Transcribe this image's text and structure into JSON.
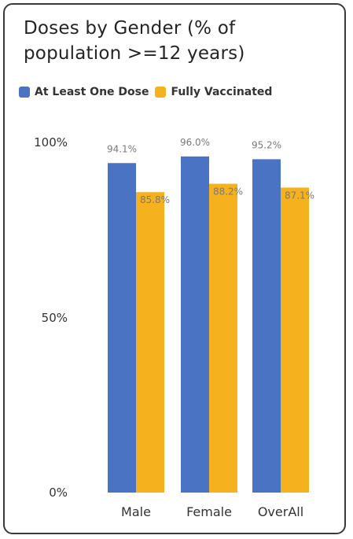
{
  "chart_data": {
    "type": "bar",
    "title": "Doses by Gender (% of population >=12 years)",
    "categories": [
      "Male",
      "Female",
      "OverAll"
    ],
    "series": [
      {
        "name": "At Least One Dose",
        "color": "#4A73C4",
        "values": [
          94.1,
          96.0,
          95.2
        ],
        "labels": [
          "94.1%",
          "96.0%",
          "95.2%"
        ]
      },
      {
        "name": "Fully Vaccinated",
        "color": "#F5B21E",
        "values": [
          85.8,
          88.2,
          87.1
        ],
        "labels": [
          "85.8%",
          "88.2%",
          "87.1%"
        ]
      }
    ],
    "yticks": [
      {
        "value": 100,
        "label": "100%"
      },
      {
        "value": 50,
        "label": "50%"
      },
      {
        "value": 0,
        "label": "0%"
      }
    ],
    "ylim": [
      0,
      100
    ],
    "grid": false,
    "legend_position": "top-left"
  }
}
